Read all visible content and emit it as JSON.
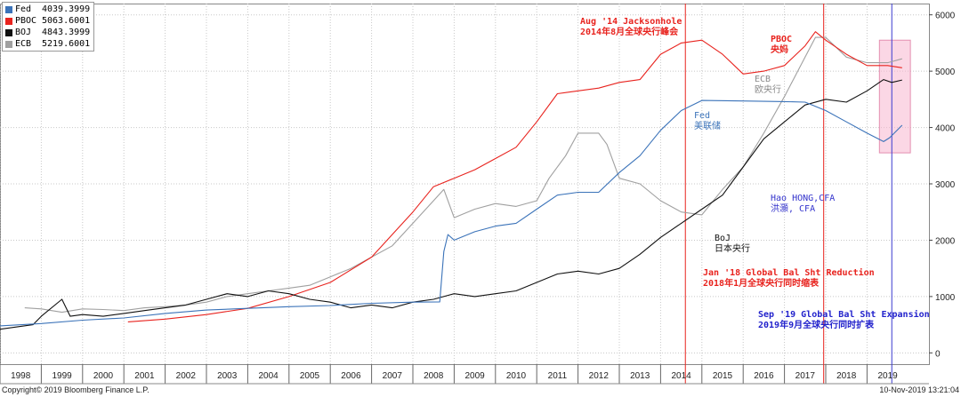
{
  "chart_data": {
    "type": "line",
    "title": "",
    "xlabel": "",
    "ylabel": "",
    "xlim": [
      1998,
      2020.5
    ],
    "ylim": [
      -200,
      6200
    ],
    "y_ticks": [
      0,
      1000,
      2000,
      3000,
      4000,
      5000,
      6000
    ],
    "x_ticks": [
      "1998",
      "1999",
      "2000",
      "2001",
      "2002",
      "2003",
      "2004",
      "2005",
      "2006",
      "2007",
      "2008",
      "2009",
      "2010",
      "2011",
      "2012",
      "2013",
      "2014",
      "2015",
      "2016",
      "2017",
      "2018",
      "2019"
    ],
    "grid": "dotted",
    "legend_position": "top-left",
    "y_axis_side": "right",
    "series": [
      {
        "name": "Fed",
        "last_value": "4039.3999",
        "color": "#3b73b9",
        "points": [
          [
            1998,
            480
          ],
          [
            1999,
            520
          ],
          [
            2000,
            580
          ],
          [
            2001,
            620
          ],
          [
            2002,
            700
          ],
          [
            2003,
            760
          ],
          [
            2004,
            790
          ],
          [
            2005,
            820
          ],
          [
            2006,
            840
          ],
          [
            2007,
            880
          ],
          [
            2008,
            900
          ],
          [
            2008.65,
            905
          ],
          [
            2008.75,
            1800
          ],
          [
            2008.85,
            2100
          ],
          [
            2009,
            2000
          ],
          [
            2009.5,
            2150
          ],
          [
            2010,
            2250
          ],
          [
            2010.5,
            2300
          ],
          [
            2011,
            2550
          ],
          [
            2011.5,
            2800
          ],
          [
            2012,
            2850
          ],
          [
            2012.5,
            2850
          ],
          [
            2013,
            3200
          ],
          [
            2013.5,
            3500
          ],
          [
            2014,
            3950
          ],
          [
            2014.5,
            4300
          ],
          [
            2015,
            4480
          ],
          [
            2016,
            4470
          ],
          [
            2017,
            4460
          ],
          [
            2017.5,
            4450
          ],
          [
            2018,
            4300
          ],
          [
            2018.5,
            4100
          ],
          [
            2019,
            3900
          ],
          [
            2019.4,
            3750
          ],
          [
            2019.55,
            3820
          ],
          [
            2019.85,
            4040
          ]
        ]
      },
      {
        "name": "PBOC",
        "last_value": "5063.6001",
        "color": "#e8231e",
        "points": [
          [
            2001.1,
            550
          ],
          [
            2002,
            600
          ],
          [
            2003,
            680
          ],
          [
            2004,
            790
          ],
          [
            2005,
            1000
          ],
          [
            2006,
            1250
          ],
          [
            2007,
            1700
          ],
          [
            2008,
            2500
          ],
          [
            2008.5,
            2950
          ],
          [
            2009,
            3100
          ],
          [
            2009.5,
            3250
          ],
          [
            2010,
            3450
          ],
          [
            2010.5,
            3650
          ],
          [
            2011,
            4100
          ],
          [
            2011.5,
            4600
          ],
          [
            2012,
            4650
          ],
          [
            2012.5,
            4700
          ],
          [
            2013,
            4800
          ],
          [
            2013.5,
            4850
          ],
          [
            2014,
            5300
          ],
          [
            2014.5,
            5500
          ],
          [
            2015,
            5550
          ],
          [
            2015.5,
            5300
          ],
          [
            2016,
            4950
          ],
          [
            2016.5,
            5000
          ],
          [
            2017,
            5100
          ],
          [
            2017.5,
            5450
          ],
          [
            2017.75,
            5700
          ],
          [
            2018,
            5550
          ],
          [
            2018.5,
            5300
          ],
          [
            2019,
            5100
          ],
          [
            2019.5,
            5100
          ],
          [
            2019.85,
            5060
          ]
        ]
      },
      {
        "name": "BOJ",
        "last_value": "4843.3999",
        "color": "#111111",
        "points": [
          [
            1998,
            420
          ],
          [
            1998.8,
            500
          ],
          [
            1999,
            650
          ],
          [
            1999.5,
            950
          ],
          [
            1999.7,
            650
          ],
          [
            2000,
            680
          ],
          [
            2000.5,
            650
          ],
          [
            2001,
            700
          ],
          [
            2001.5,
            750
          ],
          [
            2002,
            800
          ],
          [
            2002.5,
            850
          ],
          [
            2003,
            950
          ],
          [
            2003.5,
            1050
          ],
          [
            2004,
            1000
          ],
          [
            2004.5,
            1100
          ],
          [
            2005,
            1050
          ],
          [
            2005.5,
            950
          ],
          [
            2006,
            900
          ],
          [
            2006.5,
            800
          ],
          [
            2007,
            850
          ],
          [
            2007.5,
            800
          ],
          [
            2008,
            900
          ],
          [
            2008.5,
            950
          ],
          [
            2009,
            1050
          ],
          [
            2009.5,
            1000
          ],
          [
            2010,
            1050
          ],
          [
            2010.5,
            1100
          ],
          [
            2011,
            1250
          ],
          [
            2011.5,
            1400
          ],
          [
            2012,
            1450
          ],
          [
            2012.5,
            1400
          ],
          [
            2013,
            1500
          ],
          [
            2013.5,
            1750
          ],
          [
            2014,
            2050
          ],
          [
            2014.5,
            2300
          ],
          [
            2015,
            2550
          ],
          [
            2015.5,
            2800
          ],
          [
            2016,
            3300
          ],
          [
            2016.5,
            3800
          ],
          [
            2017,
            4100
          ],
          [
            2017.5,
            4400
          ],
          [
            2018,
            4500
          ],
          [
            2018.5,
            4450
          ],
          [
            2019,
            4650
          ],
          [
            2019.4,
            4850
          ],
          [
            2019.6,
            4800
          ],
          [
            2019.85,
            4843
          ]
        ]
      },
      {
        "name": "ECB",
        "last_value": "5219.6001",
        "color": "#a0a0a0",
        "points": [
          [
            1998.6,
            800
          ],
          [
            1999,
            780
          ],
          [
            1999.5,
            720
          ],
          [
            2000,
            780
          ],
          [
            2000.5,
            770
          ],
          [
            2001,
            750
          ],
          [
            2001.5,
            800
          ],
          [
            2002,
            820
          ],
          [
            2002.5,
            850
          ],
          [
            2003,
            900
          ],
          [
            2003.5,
            1000
          ],
          [
            2004,
            1050
          ],
          [
            2004.5,
            1100
          ],
          [
            2005,
            1150
          ],
          [
            2005.5,
            1200
          ],
          [
            2006,
            1350
          ],
          [
            2006.5,
            1500
          ],
          [
            2007,
            1700
          ],
          [
            2007.5,
            1900
          ],
          [
            2008,
            2300
          ],
          [
            2008.5,
            2700
          ],
          [
            2008.75,
            2900
          ],
          [
            2009,
            2400
          ],
          [
            2009.5,
            2550
          ],
          [
            2010,
            2650
          ],
          [
            2010.5,
            2600
          ],
          [
            2011,
            2700
          ],
          [
            2011.3,
            3100
          ],
          [
            2011.7,
            3500
          ],
          [
            2012,
            3900
          ],
          [
            2012.5,
            3900
          ],
          [
            2012.7,
            3700
          ],
          [
            2013,
            3100
          ],
          [
            2013.5,
            3000
          ],
          [
            2014,
            2700
          ],
          [
            2014.5,
            2500
          ],
          [
            2015,
            2450
          ],
          [
            2015.5,
            2900
          ],
          [
            2016,
            3300
          ],
          [
            2016.5,
            3900
          ],
          [
            2017,
            4550
          ],
          [
            2017.5,
            5250
          ],
          [
            2017.75,
            5600
          ],
          [
            2018,
            5600
          ],
          [
            2018.5,
            5250
          ],
          [
            2019,
            5150
          ],
          [
            2019.5,
            5150
          ],
          [
            2019.85,
            5220
          ]
        ]
      }
    ],
    "vertical_lines": [
      {
        "x": 2014.6,
        "color": "#e8231e"
      },
      {
        "x": 2017.95,
        "color": "#e8231e"
      },
      {
        "x": 2019.6,
        "color": "#3a3ad0"
      }
    ],
    "highlight_box": {
      "x0": 2019.3,
      "x1": 2020.05,
      "y0": 3550,
      "y1": 5550,
      "color": "#f7b6cf"
    }
  },
  "annotations": [
    {
      "lines": [
        "Aug '14 Jacksonhole",
        "2014年8月全球央行峰会"
      ],
      "color": "#e8231e",
      "bold": true
    },
    {
      "lines": [
        "PBOC",
        "央妈"
      ],
      "color": "#e8231e",
      "bold": true
    },
    {
      "lines": [
        "ECB",
        "欧央行"
      ],
      "color": "#8a8a8a",
      "bold": false
    },
    {
      "lines": [
        "Fed",
        "美联储"
      ],
      "color": "#3b73b9",
      "bold": false
    },
    {
      "lines": [
        "Hao HONG,CFA",
        "洪灝, CFA"
      ],
      "color": "#3333cc",
      "bold": false
    },
    {
      "lines": [
        "BoJ",
        "日本央行"
      ],
      "color": "#111111",
      "bold": false
    },
    {
      "lines": [
        "Jan '18 Global Bal Sht Reduction",
        "2018年1月全球央行同时缩表"
      ],
      "color": "#e8231e",
      "bold": true
    },
    {
      "lines": [
        "Sep '19 Global Bal Sht Expansion",
        "2019年9月全球央行同时扩表"
      ],
      "color": "#2222cc",
      "bold": true
    }
  ],
  "footer": {
    "copyright": "Copyright© 2019 Bloomberg Finance L.P.",
    "timestamp": "10-Nov-2019 13:21:04"
  }
}
